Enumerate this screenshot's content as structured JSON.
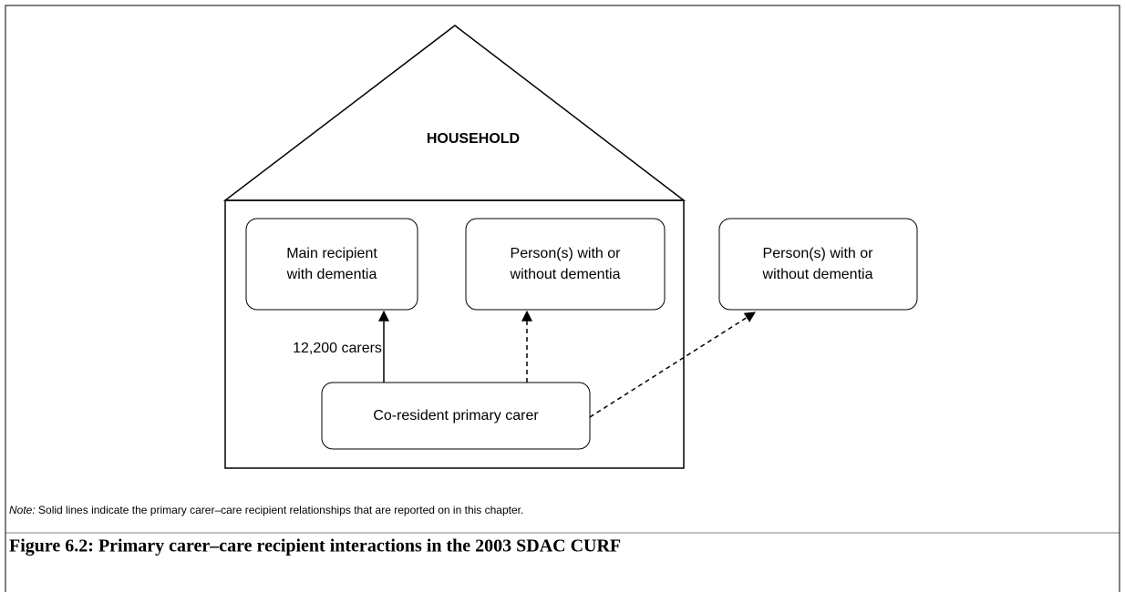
{
  "household_label": "HOUSEHOLD",
  "nodes": [
    {
      "lines": [
        "Main recipient",
        "with dementia"
      ]
    },
    {
      "lines": [
        "Person(s) with or",
        "without dementia"
      ]
    },
    {
      "lines": [
        "Person(s) with or",
        "without dementia"
      ]
    },
    {
      "lines": [
        "Co-resident primary carer"
      ]
    }
  ],
  "edges": [
    {
      "label": "12,200 carers"
    }
  ],
  "note": {
    "prefix": "Note:",
    "text": "Solid lines indicate the primary carer–care recipient relationships that are reported on in this chapter."
  },
  "caption": "Figure 6.2: Primary carer–care recipient interactions in the 2003 SDAC CURF"
}
